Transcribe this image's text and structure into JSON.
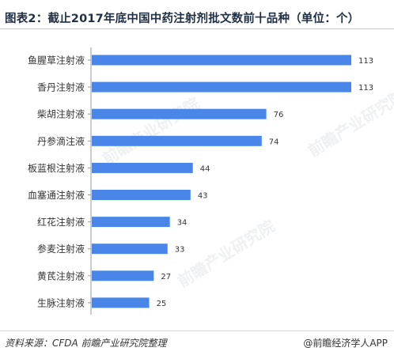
{
  "title": "图表2：截止2017年底中国中药注射剂批文数前十品种（单位：个）",
  "source": "资料来源：CFDA  前瞻产业研究院整理",
  "brand": "@前瞻经济学人APP",
  "watermark": "前瞻产业研究院",
  "colors": {
    "bar": "#4a86e8",
    "axis": "#9a9a9a",
    "text": "#333333"
  },
  "chart_data": {
    "type": "bar",
    "orientation": "horizontal",
    "categories": [
      "鱼腥草注射液",
      "香丹注射液",
      "柴胡注射液",
      "丹参滴注液",
      "板蓝根注射液",
      "血塞通注射液",
      "红花注射液",
      "参麦注射液",
      "黄芪注射液",
      "生脉注射液"
    ],
    "values": [
      113,
      113,
      76,
      74,
      44,
      43,
      34,
      33,
      27,
      25
    ],
    "xlim": [
      0,
      113
    ],
    "grid": false,
    "legend": "none"
  }
}
